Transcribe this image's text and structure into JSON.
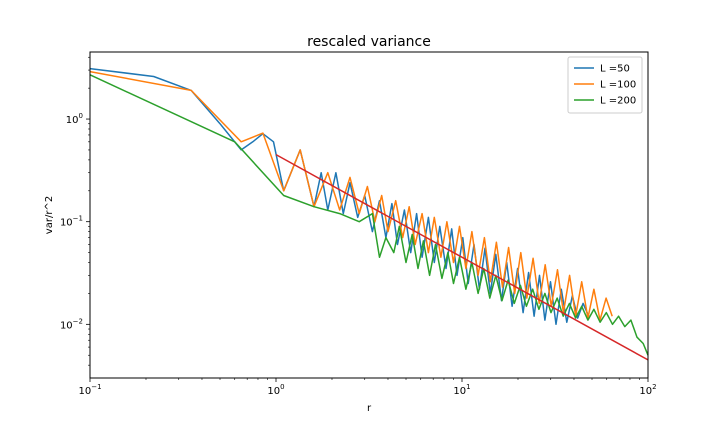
{
  "chart_data": {
    "type": "line",
    "title": "rescaled variance",
    "xlabel": "r",
    "ylabel": "var/r^2",
    "xscale": "log",
    "yscale": "log",
    "xlim": [
      0.1,
      100
    ],
    "ylim": [
      0.003,
      4.5
    ],
    "grid": false,
    "legend_position": "top-right",
    "x_ticks": [
      {
        "value": 0.1,
        "base": "10",
        "exp": "−1"
      },
      {
        "value": 1,
        "base": "10",
        "exp": "0"
      },
      {
        "value": 10,
        "base": "10",
        "exp": "1"
      },
      {
        "value": 100,
        "base": "10",
        "exp": "2"
      }
    ],
    "y_ticks": [
      {
        "value": 0.01,
        "base": "10",
        "exp": "−2"
      },
      {
        "value": 0.1,
        "base": "10",
        "exp": "−1"
      },
      {
        "value": 1,
        "base": "10",
        "exp": "0"
      }
    ],
    "series": [
      {
        "name": "L =50",
        "color": "#1f77b4",
        "x": [
          0.1,
          0.22,
          0.35,
          0.5,
          0.65,
          0.75,
          0.85,
          0.97,
          1.1,
          1.35,
          1.6,
          1.75,
          1.9,
          2.1,
          2.3,
          2.5,
          2.75,
          3.0,
          3.3,
          3.6,
          3.9,
          4.2,
          4.5,
          4.9,
          5.3,
          5.7,
          6.1,
          6.6,
          7.1,
          7.6,
          8.2,
          8.8,
          9.4,
          10.1,
          10.8,
          11.6,
          12.4,
          13.3,
          14.2,
          15.2,
          16.3,
          17.4,
          18.6,
          19.9,
          21.3,
          22.8,
          24.4,
          26.1,
          27.9,
          29.9,
          32.0,
          34.2,
          36.6,
          39.2,
          41.9,
          44.8,
          48.0
        ],
        "y": [
          3.1,
          2.6,
          1.9,
          0.9,
          0.5,
          0.6,
          0.72,
          0.6,
          0.2,
          0.5,
          0.14,
          0.3,
          0.13,
          0.3,
          0.12,
          0.24,
          0.11,
          0.18,
          0.08,
          0.16,
          0.07,
          0.15,
          0.06,
          0.13,
          0.05,
          0.12,
          0.045,
          0.11,
          0.04,
          0.09,
          0.035,
          0.085,
          0.03,
          0.07,
          0.025,
          0.06,
          0.022,
          0.055,
          0.02,
          0.048,
          0.017,
          0.04,
          0.015,
          0.035,
          0.013,
          0.032,
          0.012,
          0.03,
          0.011,
          0.026,
          0.01,
          0.022,
          0.0105,
          0.019,
          0.0115,
          0.016,
          0.012
        ]
      },
      {
        "name": "L =100",
        "color": "#ff7f0e",
        "x": [
          0.1,
          0.35,
          0.65,
          0.85,
          1.1,
          1.35,
          1.6,
          1.9,
          2.2,
          2.5,
          2.8,
          3.1,
          3.4,
          3.7,
          4.0,
          4.4,
          4.8,
          5.2,
          5.6,
          6.1,
          6.6,
          7.1,
          7.7,
          8.3,
          9.0,
          9.7,
          10.5,
          11.3,
          12.2,
          13.2,
          14.2,
          15.3,
          16.5,
          17.8,
          19.2,
          20.7,
          22.3,
          24.1,
          26.0,
          28.0,
          30.2,
          32.6,
          35.1,
          37.9,
          40.8,
          44.0,
          47.5,
          51.2,
          55.2,
          59.5,
          64.2
        ],
        "y": [
          2.9,
          1.9,
          0.6,
          0.73,
          0.2,
          0.5,
          0.14,
          0.3,
          0.13,
          0.27,
          0.12,
          0.22,
          0.1,
          0.18,
          0.08,
          0.16,
          0.07,
          0.14,
          0.06,
          0.12,
          0.05,
          0.11,
          0.045,
          0.1,
          0.04,
          0.09,
          0.035,
          0.08,
          0.03,
          0.07,
          0.026,
          0.063,
          0.023,
          0.056,
          0.02,
          0.05,
          0.018,
          0.044,
          0.016,
          0.038,
          0.015,
          0.034,
          0.013,
          0.03,
          0.012,
          0.026,
          0.0115,
          0.022,
          0.011,
          0.018,
          0.012
        ]
      },
      {
        "name": "L =200",
        "color": "#2ca02c",
        "x": [
          0.1,
          0.6,
          1.1,
          1.6,
          2.2,
          2.8,
          3.3,
          3.6,
          3.9,
          4.3,
          4.6,
          5.0,
          5.4,
          5.8,
          6.2,
          6.7,
          7.2,
          7.8,
          8.4,
          9.0,
          9.7,
          10.5,
          11.3,
          12.2,
          13.1,
          14.1,
          15.2,
          16.4,
          17.7,
          19.1,
          20.6,
          22.2,
          24.0,
          25.9,
          27.9,
          30.1,
          32.5,
          35.0,
          37.8,
          40.8,
          44.0,
          47.5,
          51.2,
          55.3,
          59.7,
          64.4,
          69.5,
          75.0,
          80.9,
          87.3,
          94.2,
          100
        ],
        "y": [
          2.7,
          0.6,
          0.18,
          0.14,
          0.12,
          0.1,
          0.12,
          0.045,
          0.07,
          0.05,
          0.09,
          0.04,
          0.075,
          0.035,
          0.065,
          0.03,
          0.06,
          0.028,
          0.05,
          0.025,
          0.045,
          0.022,
          0.04,
          0.02,
          0.035,
          0.018,
          0.03,
          0.017,
          0.027,
          0.016,
          0.024,
          0.015,
          0.022,
          0.014,
          0.02,
          0.013,
          0.018,
          0.012,
          0.016,
          0.0115,
          0.015,
          0.011,
          0.014,
          0.0105,
          0.013,
          0.01,
          0.012,
          0.0095,
          0.011,
          0.0075,
          0.0065,
          0.005
        ]
      },
      {
        "name": "",
        "color": "#d62728",
        "x": [
          1.0,
          100
        ],
        "y": [
          0.45,
          0.0045
        ]
      }
    ]
  }
}
